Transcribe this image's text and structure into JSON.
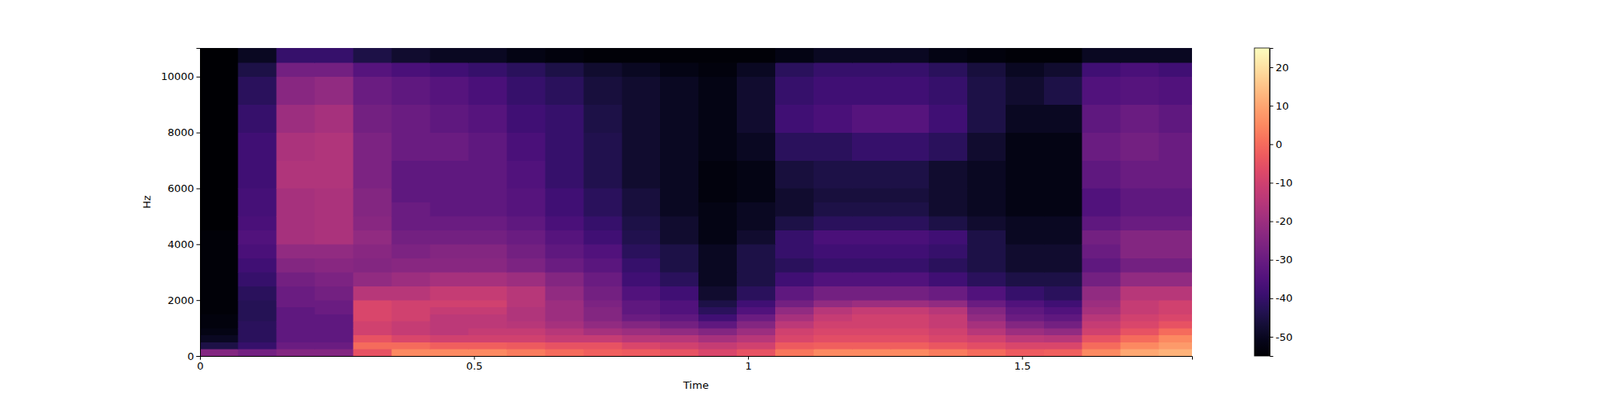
{
  "chart_data": {
    "type": "heatmap",
    "x_label": "Time",
    "y_label": "Hz",
    "xlim": [
      0,
      1.81
    ],
    "xticks": [
      0,
      0.5,
      1,
      1.5
    ],
    "ylim": [
      0,
      11025
    ],
    "yticks": [
      0,
      2000,
      4000,
      6000,
      8000,
      10000
    ],
    "x_edges": [
      0,
      0.07,
      0.14,
      0.21,
      0.28,
      0.35,
      0.42,
      0.49,
      0.56,
      0.63,
      0.7,
      0.77,
      0.84,
      0.91,
      0.98,
      1.05,
      1.12,
      1.19,
      1.26,
      1.33,
      1.4,
      1.47,
      1.54,
      1.61,
      1.68,
      1.75,
      1.81
    ],
    "y_edges": [
      0,
      250,
      500,
      750,
      1000,
      1250,
      1500,
      1750,
      2000,
      2500,
      3000,
      3500,
      4000,
      4500,
      5000,
      5500,
      6000,
      7000,
      8000,
      9000,
      10000,
      10500,
      11025
    ],
    "cells": [
      [
        -25,
        -28,
        -25,
        -25,
        -5,
        5,
        5,
        5,
        3,
        0,
        -2,
        -3,
        -5,
        -8,
        -5,
        2,
        5,
        5,
        5,
        3,
        0,
        -3,
        -2,
        5,
        10,
        12
      ],
      [
        -45,
        -40,
        -30,
        -30,
        0,
        0,
        -2,
        -2,
        -3,
        -5,
        -5,
        -8,
        -10,
        -12,
        -10,
        -3,
        -2,
        -2,
        -2,
        -4,
        -6,
        -8,
        -8,
        0,
        5,
        8
      ],
      [
        -50,
        -42,
        -32,
        -32,
        -5,
        -8,
        -10,
        -10,
        -10,
        -12,
        -12,
        -15,
        -15,
        -18,
        -15,
        -8,
        -6,
        -6,
        -6,
        -8,
        -10,
        -14,
        -15,
        -5,
        0,
        5
      ],
      [
        -52,
        -42,
        -32,
        -32,
        -10,
        -12,
        -14,
        -12,
        -12,
        -15,
        -18,
        -20,
        -22,
        -25,
        -20,
        -10,
        -8,
        -8,
        -8,
        -10,
        -15,
        -20,
        -22,
        -10,
        -5,
        0
      ],
      [
        -53,
        -42,
        -32,
        -32,
        -10,
        -12,
        -14,
        -14,
        -15,
        -18,
        -22,
        -25,
        -28,
        -32,
        -25,
        -14,
        -10,
        -10,
        -10,
        -12,
        -18,
        -25,
        -28,
        -12,
        -8,
        -5
      ],
      [
        -53,
        -43,
        -32,
        -32,
        -8,
        -10,
        -14,
        -14,
        -16,
        -20,
        -25,
        -30,
        -32,
        -38,
        -30,
        -18,
        -12,
        -10,
        -10,
        -12,
        -22,
        -30,
        -32,
        -15,
        -10,
        -8
      ],
      [
        -54,
        -43,
        -32,
        -30,
        -8,
        -10,
        -12,
        -12,
        -16,
        -20,
        -25,
        -32,
        -35,
        -42,
        -35,
        -22,
        -15,
        -12,
        -12,
        -15,
        -25,
        -32,
        -35,
        -18,
        -12,
        -10
      ],
      [
        -54,
        -43,
        -30,
        -30,
        -8,
        -10,
        -10,
        -10,
        -15,
        -20,
        -26,
        -32,
        -35,
        -45,
        -38,
        -28,
        -22,
        -20,
        -20,
        -22,
        -30,
        -35,
        -38,
        -20,
        -12,
        -10
      ],
      [
        -54,
        -42,
        -30,
        -28,
        -15,
        -15,
        -12,
        -12,
        -15,
        -22,
        -28,
        -35,
        -38,
        -48,
        -42,
        -32,
        -28,
        -28,
        -28,
        -30,
        -35,
        -40,
        -42,
        -22,
        -15,
        -15
      ],
      [
        -54,
        -40,
        -28,
        -26,
        -22,
        -20,
        -18,
        -18,
        -20,
        -25,
        -30,
        -38,
        -42,
        -50,
        -45,
        -38,
        -35,
        -35,
        -35,
        -38,
        -42,
        -45,
        -45,
        -28,
        -22,
        -22
      ],
      [
        -54,
        -38,
        -25,
        -24,
        -25,
        -24,
        -24,
        -24,
        -26,
        -30,
        -33,
        -40,
        -45,
        -50,
        -45,
        -42,
        -40,
        -40,
        -40,
        -42,
        -45,
        -48,
        -48,
        -32,
        -28,
        -28
      ],
      [
        -54,
        -36,
        -22,
        -22,
        -24,
        -26,
        -25,
        -25,
        -28,
        -32,
        -35,
        -42,
        -45,
        -50,
        -45,
        -40,
        -38,
        -38,
        -38,
        -40,
        -45,
        -48,
        -48,
        -30,
        -25,
        -25
      ],
      [
        -54,
        -35,
        -18,
        -17,
        -22,
        -28,
        -28,
        -28,
        -30,
        -34,
        -38,
        -44,
        -48,
        -52,
        -48,
        -40,
        -36,
        -36,
        -36,
        -38,
        -45,
        -50,
        -50,
        -28,
        -25,
        -25
      ],
      [
        -55,
        -36,
        -18,
        -17,
        -24,
        -30,
        -30,
        -30,
        -32,
        -36,
        -40,
        -45,
        -48,
        -52,
        -50,
        -45,
        -42,
        -42,
        -42,
        -45,
        -48,
        -50,
        -50,
        -32,
        -30,
        -30
      ],
      [
        -55,
        -37,
        -18,
        -17,
        -25,
        -30,
        -32,
        -32,
        -34,
        -38,
        -42,
        -46,
        -50,
        -52,
        -50,
        -48,
        -45,
        -45,
        -45,
        -48,
        -50,
        -52,
        -52,
        -35,
        -32,
        -32
      ],
      [
        -55,
        -37,
        -18,
        -17,
        -25,
        -32,
        -32,
        -32,
        -34,
        -38,
        -42,
        -46,
        -50,
        -53,
        -52,
        -48,
        -46,
        -46,
        -46,
        -48,
        -50,
        -52,
        -52,
        -35,
        -32,
        -32
      ],
      [
        -55,
        -38,
        -16,
        -16,
        -26,
        -32,
        -32,
        -32,
        -35,
        -40,
        -44,
        -48,
        -50,
        -53,
        -52,
        -46,
        -45,
        -45,
        -45,
        -48,
        -50,
        -52,
        -52,
        -32,
        -30,
        -30
      ],
      [
        -55,
        -38,
        -17,
        -16,
        -26,
        -30,
        -30,
        -32,
        -36,
        -40,
        -44,
        -48,
        -50,
        -52,
        -50,
        -42,
        -42,
        -40,
        -40,
        -42,
        -48,
        -52,
        -52,
        -30,
        -28,
        -30
      ],
      [
        -55,
        -40,
        -20,
        -18,
        -28,
        -30,
        -32,
        -34,
        -38,
        -40,
        -45,
        -48,
        -50,
        -52,
        -48,
        -38,
        -36,
        -34,
        -34,
        -38,
        -45,
        -50,
        -50,
        -32,
        -30,
        -32
      ],
      [
        -55,
        -42,
        -24,
        -22,
        -30,
        -32,
        -34,
        -36,
        -40,
        -42,
        -46,
        -48,
        -50,
        -52,
        -48,
        -40,
        -38,
        -38,
        -38,
        -40,
        -45,
        -48,
        -45,
        -35,
        -34,
        -35
      ],
      [
        -55,
        -45,
        -28,
        -28,
        -34,
        -36,
        -38,
        -40,
        -42,
        -45,
        -48,
        -50,
        -52,
        -53,
        -50,
        -42,
        -40,
        -40,
        -40,
        -42,
        -46,
        -50,
        -48,
        -38,
        -36,
        -38
      ],
      [
        -55,
        -50,
        -40,
        -40,
        -45,
        -48,
        -50,
        -50,
        -52,
        -53,
        -54,
        -54,
        -54,
        -54,
        -54,
        -52,
        -50,
        -50,
        -50,
        -52,
        -53,
        -54,
        -54,
        -50,
        -50,
        -50
      ]
    ],
    "colorbar": {
      "range": [
        -55,
        25
      ],
      "ticks": [
        -50,
        -40,
        -30,
        -20,
        -10,
        0,
        10,
        20
      ]
    }
  }
}
